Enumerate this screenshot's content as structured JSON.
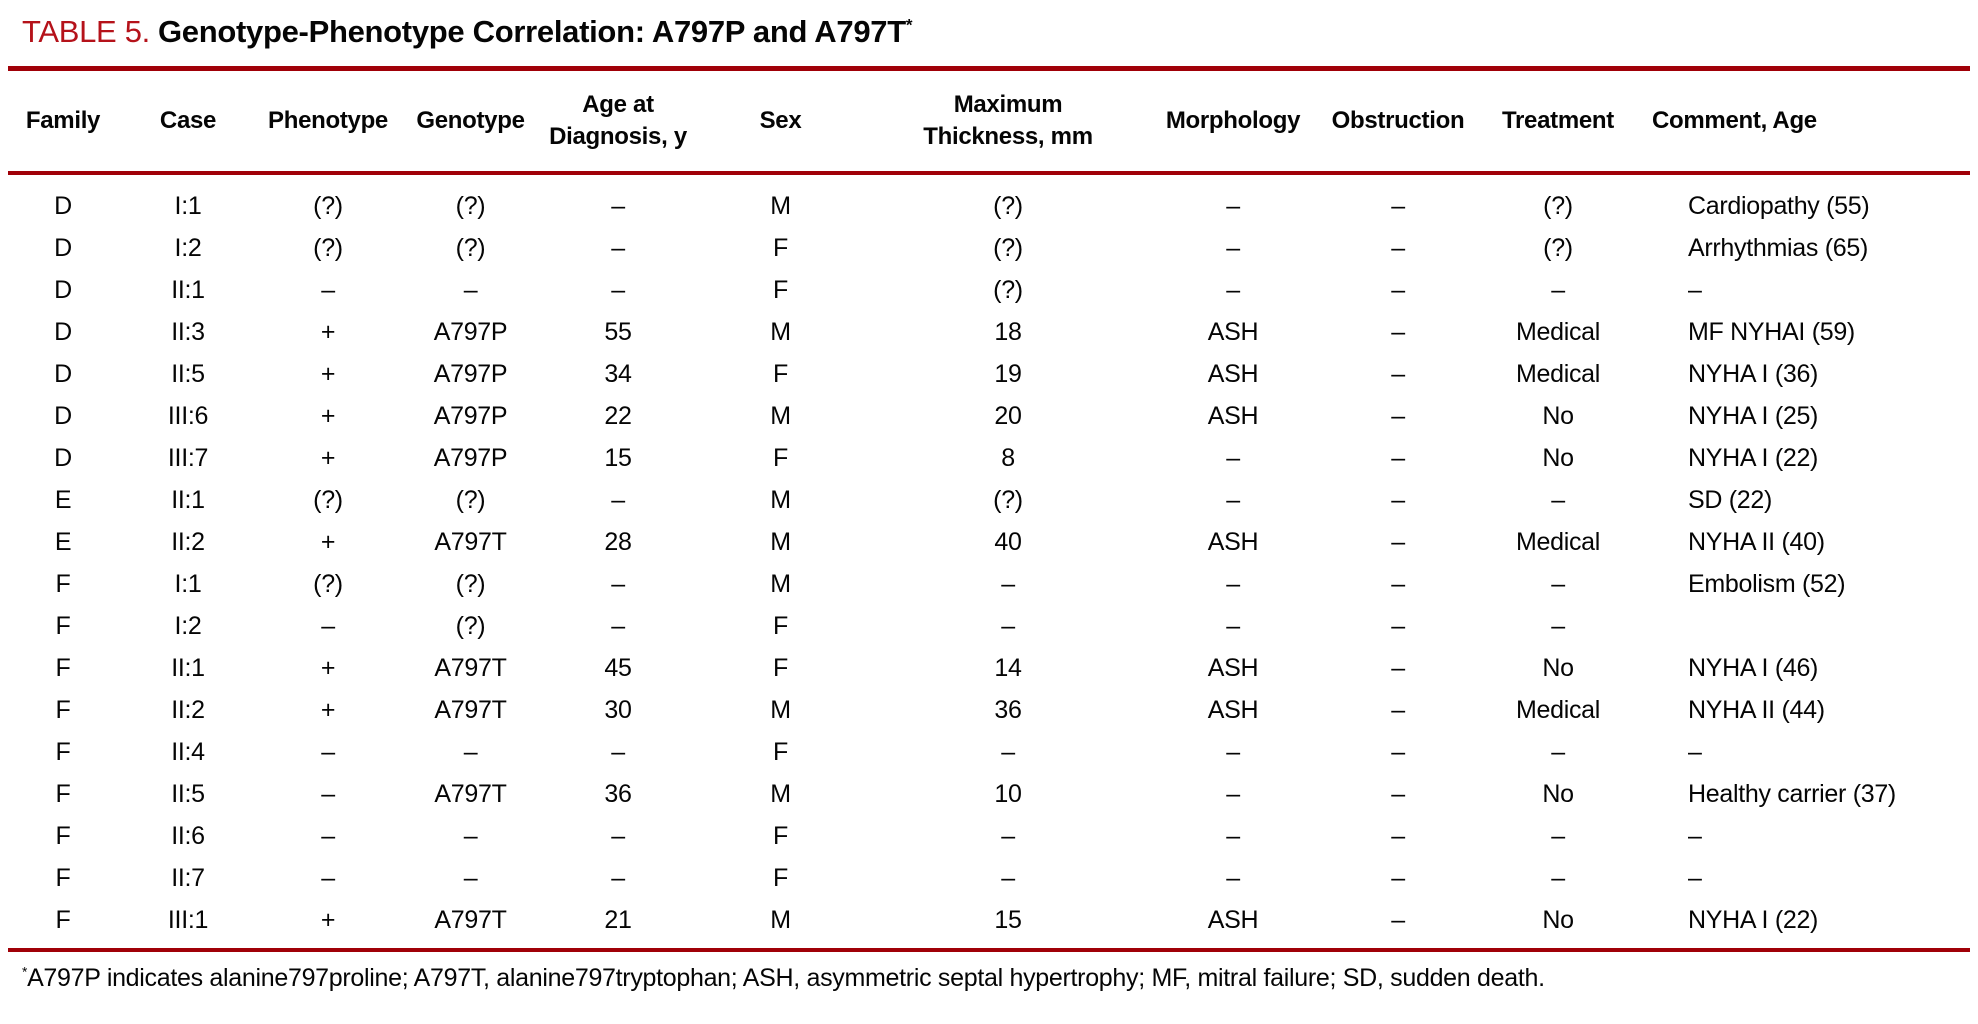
{
  "title": {
    "label": "TABLE 5.",
    "text": "Genotype-Phenotype Correlation: A797P and A797T",
    "footnote_marker": "*"
  },
  "table": {
    "columns": [
      {
        "key": "family",
        "label": "Family"
      },
      {
        "key": "case",
        "label": "Case"
      },
      {
        "key": "phenotype",
        "label": "Phenotype"
      },
      {
        "key": "genotype",
        "label": "Genotype"
      },
      {
        "key": "age-at-diagnosis",
        "label": "Age at\nDiagnosis, y"
      },
      {
        "key": "sex",
        "label": "Sex"
      },
      {
        "key": "max-thickness",
        "label": "Maximum\nThickness, mm"
      },
      {
        "key": "morphology",
        "label": "Morphology"
      },
      {
        "key": "obstruction",
        "label": "Obstruction"
      },
      {
        "key": "treatment",
        "label": "Treatment"
      },
      {
        "key": "comment",
        "label": "Comment, Age"
      }
    ],
    "rows": [
      [
        "D",
        "I:1",
        "(?)",
        "(?)",
        "–",
        "M",
        "(?)",
        "–",
        "–",
        "(?)",
        "Cardiopathy (55)"
      ],
      [
        "D",
        "I:2",
        "(?)",
        "(?)",
        "–",
        "F",
        "(?)",
        "–",
        "–",
        "(?)",
        "Arrhythmias (65)"
      ],
      [
        "D",
        "II:1",
        "–",
        "–",
        "–",
        "F",
        "(?)",
        "–",
        "–",
        "–",
        "–"
      ],
      [
        "D",
        "II:3",
        "+",
        "A797P",
        "55",
        "M",
        "18",
        "ASH",
        "–",
        "Medical",
        "MF NYHAI (59)"
      ],
      [
        "D",
        "II:5",
        "+",
        "A797P",
        "34",
        "F",
        "19",
        "ASH",
        "–",
        "Medical",
        "NYHA I (36)"
      ],
      [
        "D",
        "III:6",
        "+",
        "A797P",
        "22",
        "M",
        "20",
        "ASH",
        "–",
        "No",
        "NYHA I (25)"
      ],
      [
        "D",
        "III:7",
        "+",
        "A797P",
        "15",
        "F",
        "8",
        "–",
        "–",
        "No",
        "NYHA I (22)"
      ],
      [
        "E",
        "II:1",
        "(?)",
        "(?)",
        "–",
        "M",
        "(?)",
        "–",
        "–",
        "–",
        "SD (22)"
      ],
      [
        "E",
        "II:2",
        "+",
        "A797T",
        "28",
        "M",
        "40",
        "ASH",
        "–",
        "Medical",
        "NYHA II (40)"
      ],
      [
        "F",
        "I:1",
        "(?)",
        "(?)",
        "–",
        "M",
        "–",
        "–",
        "–",
        "–",
        "Embolism (52)"
      ],
      [
        "F",
        "I:2",
        "–",
        "(?)",
        "–",
        "F",
        "–",
        "–",
        "–",
        "–",
        ""
      ],
      [
        "F",
        "II:1",
        "+",
        "A797T",
        "45",
        "F",
        "14",
        "ASH",
        "–",
        "No",
        "NYHA I (46)"
      ],
      [
        "F",
        "II:2",
        "+",
        "A797T",
        "30",
        "M",
        "36",
        "ASH",
        "–",
        "Medical",
        "NYHA II (44)"
      ],
      [
        "F",
        "II:4",
        "–",
        "–",
        "–",
        "F",
        "–",
        "–",
        "–",
        "–",
        "–"
      ],
      [
        "F",
        "II:5",
        "–",
        "A797T",
        "36",
        "M",
        "10",
        "–",
        "–",
        "No",
        "Healthy carrier (37)"
      ],
      [
        "F",
        "II:6",
        "–",
        "–",
        "–",
        "F",
        "–",
        "–",
        "–",
        "–",
        "–"
      ],
      [
        "F",
        "II:7",
        "–",
        "–",
        "–",
        "F",
        "–",
        "–",
        "–",
        "–",
        "–"
      ],
      [
        "F",
        "III:1",
        "+",
        "A797T",
        "21",
        "M",
        "15",
        "ASH",
        "–",
        "No",
        "NYHA I (22)"
      ]
    ]
  },
  "footnote": {
    "marker": "*",
    "text": "A797P indicates alanine797proline; A797T, alanine797tryptophan; ASH, asymmetric septal hypertrophy; MF, mitral failure; SD, sudden death."
  },
  "colors": {
    "rule_red": "#A00008",
    "title_red": "#B5121A",
    "text": "#050505"
  }
}
